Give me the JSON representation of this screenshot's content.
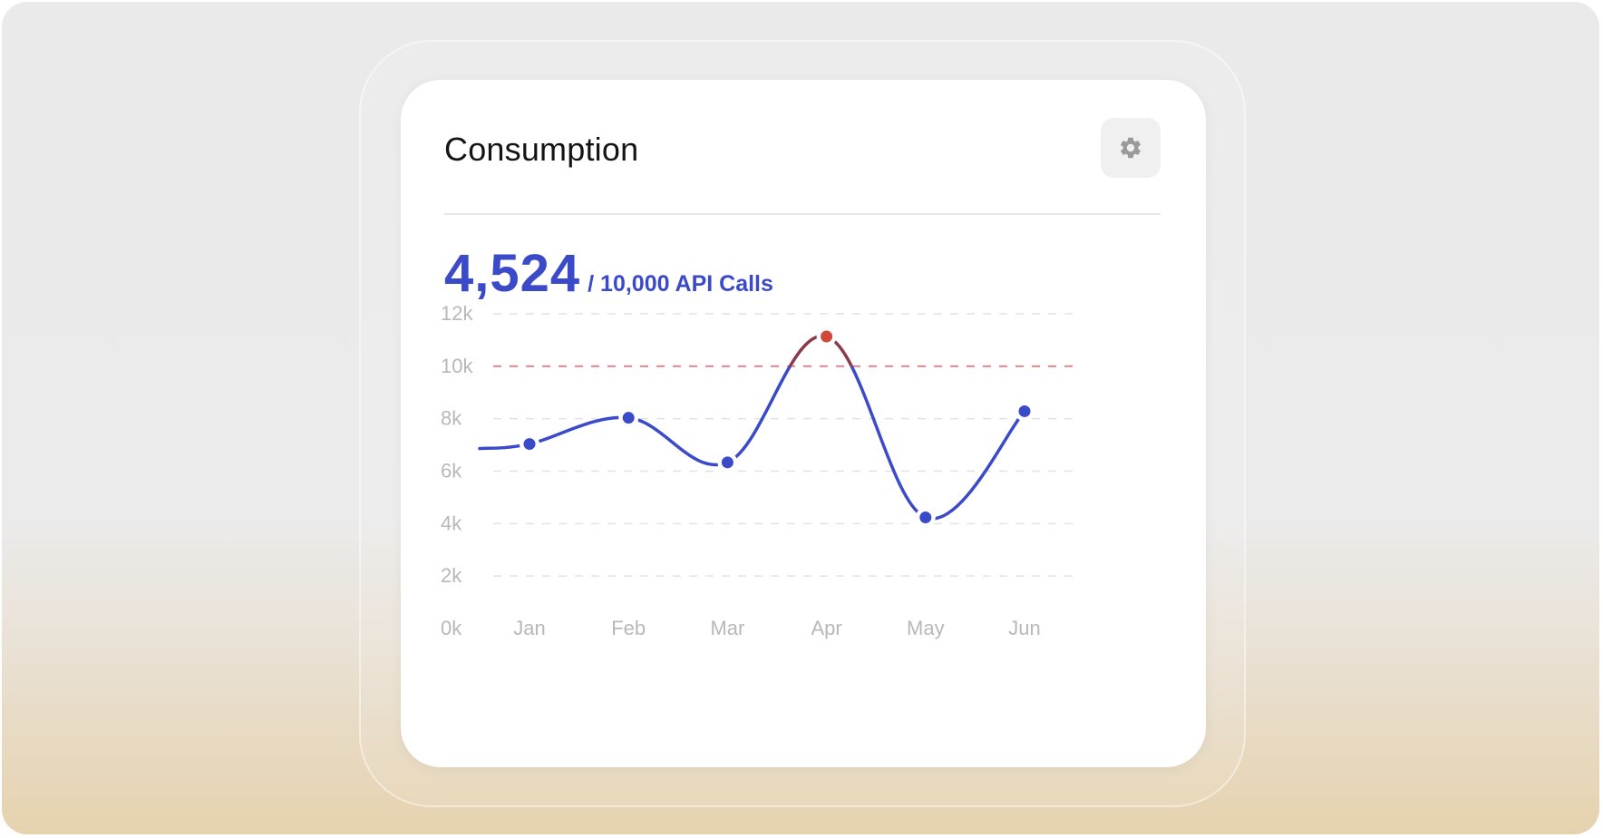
{
  "card": {
    "title": "Consumption",
    "settings_icon": "gear-icon",
    "usage_value": "4,524",
    "usage_limit": "/ 10,000 API Calls"
  },
  "colors": {
    "accent": "#3b4ac9",
    "limit_line": "#e08080",
    "over_limit_point": "#d1473a",
    "grid": "#e2e2e2"
  },
  "chart_data": {
    "type": "line",
    "categories": [
      "Jan",
      "Feb",
      "Mar",
      "Apr",
      "May",
      "Jun"
    ],
    "series": [
      {
        "values": [
          7000,
          8000,
          6300,
          11100,
          4200,
          8250
        ]
      }
    ],
    "y_ticks": [
      "0k",
      "2k",
      "4k",
      "6k",
      "8k",
      "10k",
      "12k"
    ],
    "ylim": [
      0,
      12000
    ],
    "limit": 10000,
    "grid": true,
    "smooth": true
  }
}
